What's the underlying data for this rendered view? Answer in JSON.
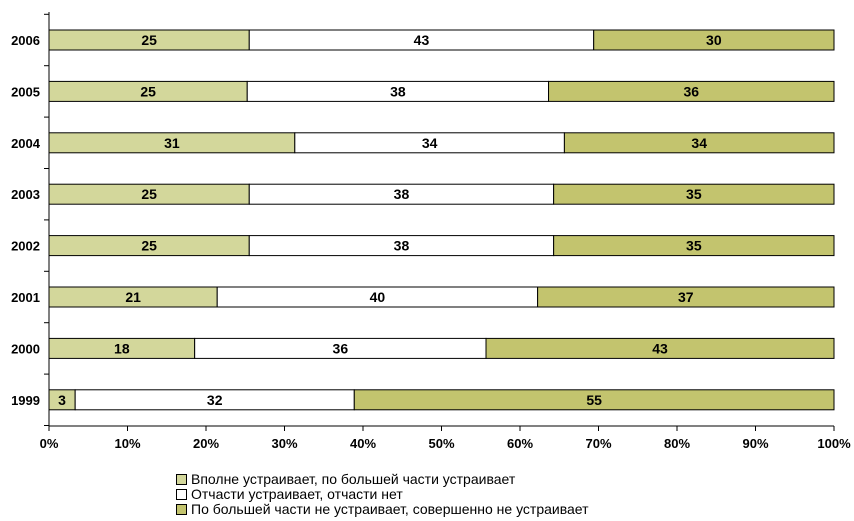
{
  "chart_data": {
    "type": "bar",
    "orientation": "horizontal",
    "stacked": "percent",
    "categories": [
      "2006",
      "2005",
      "2004",
      "2003",
      "2002",
      "2001",
      "2000",
      "1999"
    ],
    "series": [
      {
        "name": "Вполне устраивает, по большей части устраивает",
        "values": [
          25,
          25,
          31,
          25,
          25,
          21,
          18,
          3
        ],
        "color": "#d3d79b"
      },
      {
        "name": "Отчасти устраивает, отчасти нет",
        "values": [
          43,
          38,
          34,
          38,
          38,
          40,
          36,
          32
        ],
        "color": "#ffffff"
      },
      {
        "name": "По большей части не устраивает, совершенно не устраивает",
        "values": [
          30,
          36,
          34,
          35,
          35,
          37,
          43,
          55
        ],
        "color": "#c3c46e"
      }
    ],
    "x_ticks": [
      "0%",
      "10%",
      "20%",
      "30%",
      "40%",
      "50%",
      "60%",
      "70%",
      "80%",
      "90%",
      "100%"
    ],
    "xlim": [
      0,
      100
    ],
    "grid": false,
    "legend_position": "bottom"
  }
}
